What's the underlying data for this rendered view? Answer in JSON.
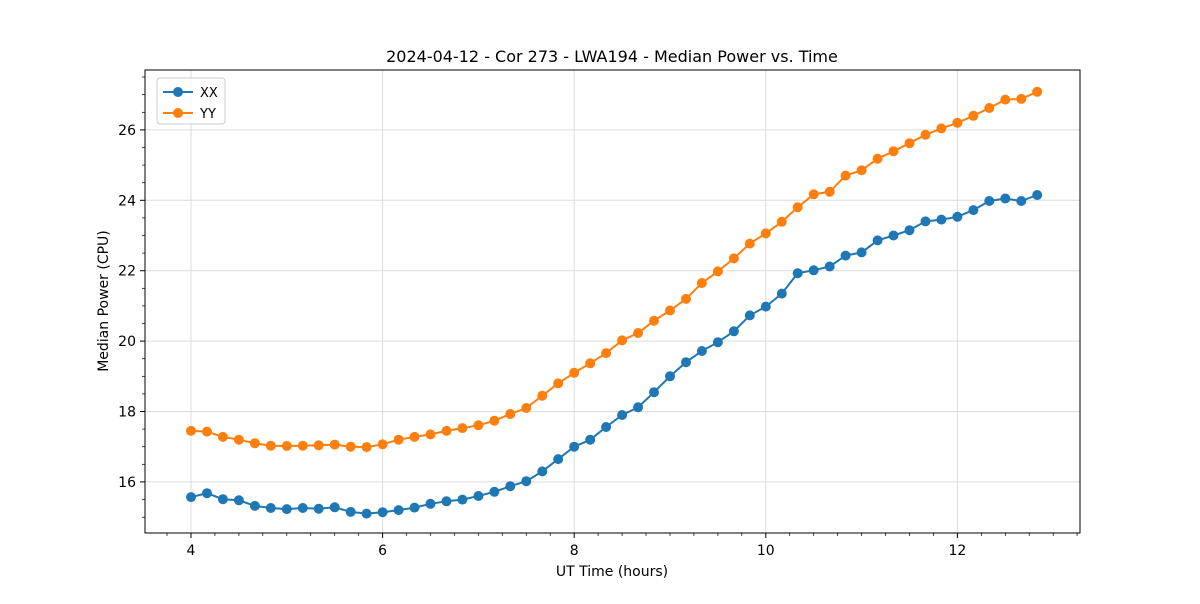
{
  "figure": {
    "background": "#ffffff"
  },
  "chart_data": {
    "type": "line",
    "title": "2024-04-12 - Cor 273 - LWA194 - Median Power vs. Time",
    "xlabel": "UT Time (hours)",
    "ylabel": "Median Power (CPU)",
    "xlim": [
      3.52,
      13.28
    ],
    "ylim": [
      14.55,
      27.7
    ],
    "xticks": [
      4,
      6,
      8,
      10,
      12
    ],
    "yticks": [
      16,
      18,
      20,
      22,
      24,
      26
    ],
    "minor_x_step": 0.25,
    "minor_y_step": 0.5,
    "grid": true,
    "legend_position": "upper-left",
    "marker": "circle",
    "x": [
      4.0,
      4.167,
      4.333,
      4.5,
      4.667,
      4.833,
      5.0,
      5.167,
      5.333,
      5.5,
      5.667,
      5.833,
      6.0,
      6.167,
      6.333,
      6.5,
      6.667,
      6.833,
      7.0,
      7.167,
      7.333,
      7.5,
      7.667,
      7.833,
      8.0,
      8.167,
      8.333,
      8.5,
      8.667,
      8.833,
      9.0,
      9.167,
      9.333,
      9.5,
      9.667,
      9.833,
      10.0,
      10.167,
      10.333,
      10.5,
      10.667,
      10.833,
      11.0,
      11.167,
      11.333,
      11.5,
      11.667,
      11.833,
      12.0,
      12.167,
      12.333,
      12.5,
      12.667,
      12.833
    ],
    "series": [
      {
        "name": "XX",
        "color": "#1f77b4",
        "values": [
          15.57,
          15.68,
          15.51,
          15.48,
          15.32,
          15.26,
          15.23,
          15.26,
          15.24,
          15.28,
          15.15,
          15.1,
          15.14,
          15.2,
          15.27,
          15.38,
          15.45,
          15.5,
          15.6,
          15.72,
          15.88,
          16.02,
          16.3,
          16.65,
          17.0,
          17.2,
          17.56,
          17.9,
          18.12,
          18.55,
          19.0,
          19.4,
          19.72,
          19.97,
          20.28,
          20.73,
          20.98,
          21.35,
          21.93,
          22.01,
          22.12,
          22.43,
          22.52,
          22.86,
          23.0,
          23.15,
          23.4,
          23.45,
          23.53,
          23.72,
          23.98,
          24.05,
          23.98,
          24.15
        ]
      },
      {
        "name": "YY",
        "color": "#ff7f0e",
        "values": [
          17.45,
          17.43,
          17.28,
          17.2,
          17.1,
          17.03,
          17.02,
          17.03,
          17.04,
          17.06,
          17.0,
          16.99,
          17.07,
          17.2,
          17.28,
          17.35,
          17.45,
          17.53,
          17.61,
          17.74,
          17.93,
          18.1,
          18.45,
          18.8,
          19.1,
          19.37,
          19.66,
          20.02,
          20.23,
          20.58,
          20.87,
          21.2,
          21.65,
          21.98,
          22.35,
          22.77,
          23.06,
          23.39,
          23.8,
          24.17,
          24.24,
          24.7,
          24.85,
          25.18,
          25.39,
          25.62,
          25.86,
          26.04,
          26.2,
          26.4,
          26.62,
          26.86,
          26.88,
          27.08
        ]
      }
    ]
  }
}
